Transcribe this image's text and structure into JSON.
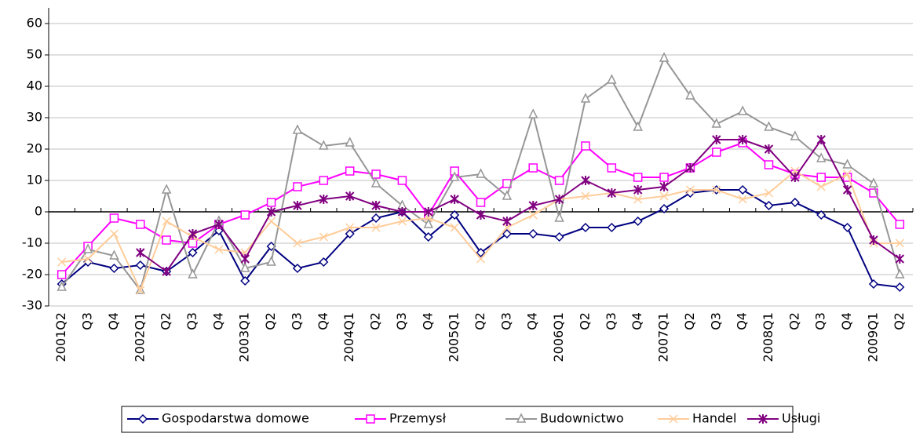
{
  "chart_data": {
    "type": "line",
    "categories": [
      "2001Q2",
      "Q3",
      "Q4",
      "2002Q1",
      "Q2",
      "Q3",
      "Q4",
      "2003Q1",
      "Q2",
      "Q3",
      "Q4",
      "2004Q1",
      "Q2",
      "Q3",
      "Q4",
      "2005Q1",
      "Q2",
      "Q3",
      "Q4",
      "2006Q1",
      "Q2",
      "Q3",
      "Q4",
      "2007Q1",
      "Q2",
      "Q3",
      "Q4",
      "2008Q1",
      "Q2",
      "Q3",
      "Q4",
      "2009Q1",
      "Q2"
    ],
    "series": [
      {
        "name": "Gospodarstwa domowe",
        "color": "#000080",
        "marker": "diamond",
        "values": [
          -23,
          -16,
          -18,
          -17,
          -19,
          -13,
          -6,
          -22,
          -11,
          -18,
          -16,
          -7,
          -2,
          0,
          -8,
          -1,
          -13,
          -7,
          -7,
          -8,
          -5,
          -5,
          -3,
          1,
          6,
          7,
          7,
          2,
          3,
          -1,
          -5,
          -23,
          -24
        ]
      },
      {
        "name": "Przemysł",
        "color": "#ff00ff",
        "marker": "square",
        "values": [
          -20,
          -11,
          -2,
          -4,
          -9,
          -10,
          -4,
          -1,
          3,
          8,
          10,
          13,
          12,
          10,
          -1,
          13,
          3,
          9,
          14,
          10,
          21,
          14,
          11,
          11,
          14,
          19,
          22,
          15,
          12,
          11,
          11,
          6,
          -4
        ]
      },
      {
        "name": "Budownictwo",
        "color": "#969696",
        "marker": "triangle",
        "values": [
          -24,
          -12,
          -14,
          -25,
          7,
          -20,
          -3,
          -18,
          -16,
          26,
          21,
          22,
          9,
          2,
          -4,
          11,
          12,
          5,
          31,
          -2,
          36,
          42,
          27,
          49,
          37,
          28,
          32,
          27,
          24,
          17,
          15,
          9,
          -20
        ]
      },
      {
        "name": "Handel",
        "color": "#ffcc99",
        "marker": "x",
        "values": [
          -16,
          -15,
          -7,
          -25,
          -3,
          -8,
          -12,
          -13,
          -3,
          -10,
          -8,
          -5,
          -5,
          -3,
          -2,
          -5,
          -15,
          -5,
          -1,
          4,
          5,
          6,
          4,
          5,
          7,
          7,
          4,
          6,
          13,
          8,
          12,
          -10,
          -10
        ]
      },
      {
        "name": "Usługi",
        "color": "#800080",
        "marker": "asterisk",
        "values": [
          null,
          null,
          null,
          -13,
          -19,
          -7,
          -4,
          -15,
          0,
          2,
          4,
          5,
          2,
          0,
          0,
          4,
          -1,
          -3,
          2,
          4,
          10,
          6,
          7,
          8,
          14,
          23,
          23,
          20,
          11,
          23,
          7,
          -9,
          -15
        ]
      }
    ],
    "ylim": [
      -30,
      60
    ],
    "yticks": [
      -30,
      -20,
      -10,
      0,
      10,
      20,
      30,
      40,
      50,
      60
    ],
    "grid": true
  }
}
